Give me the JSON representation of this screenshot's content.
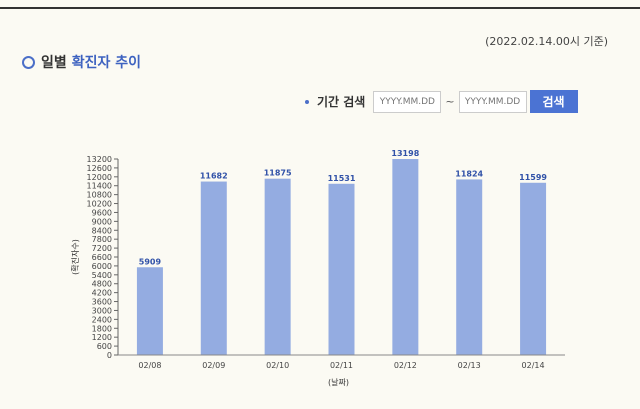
{
  "header": {
    "as_of": "(2022.02.14.00시 기준)",
    "title_prefix": "일별",
    "title_highlight": "확진자 추이"
  },
  "search": {
    "label": "기간 검색",
    "start_placeholder": "YYYY.MM.DD",
    "end_placeholder": "YYYY.MM.DD",
    "separator": "~",
    "button_label": "검색"
  },
  "colors": {
    "accent": "#4b73d3",
    "bar": "#94ace1",
    "value_label": "#3152a8"
  },
  "chart_data": {
    "type": "bar",
    "categories": [
      "02/08",
      "02/09",
      "02/10",
      "02/11",
      "02/12",
      "02/13",
      "02/14"
    ],
    "values": [
      5909,
      11682,
      11875,
      11531,
      13198,
      11824,
      11599
    ],
    "value_labels": [
      "5909",
      "11682",
      "11875",
      "11531",
      "13198",
      "11824",
      "11599"
    ],
    "xlabel": "(날짜)",
    "ylabel": "(확진자수)",
    "ylim": [
      0,
      13200
    ],
    "yticks": [
      0,
      600,
      1200,
      1800,
      2400,
      3000,
      3600,
      4200,
      4800,
      5400,
      6000,
      6600,
      7200,
      7800,
      8400,
      9000,
      9600,
      10200,
      10800,
      11400,
      12000,
      12600,
      13200
    ],
    "ytick_labels": [
      "0",
      "600",
      "1200",
      "1800",
      "2400",
      "3000",
      "3600",
      "4200",
      "4800",
      "5400",
      "6000",
      "6600",
      "7200",
      "7800",
      "8400",
      "9000",
      "9600",
      "10200",
      "10800",
      "11400",
      "12000",
      "12600",
      "13200"
    ],
    "grid": false,
    "legend": "none"
  }
}
